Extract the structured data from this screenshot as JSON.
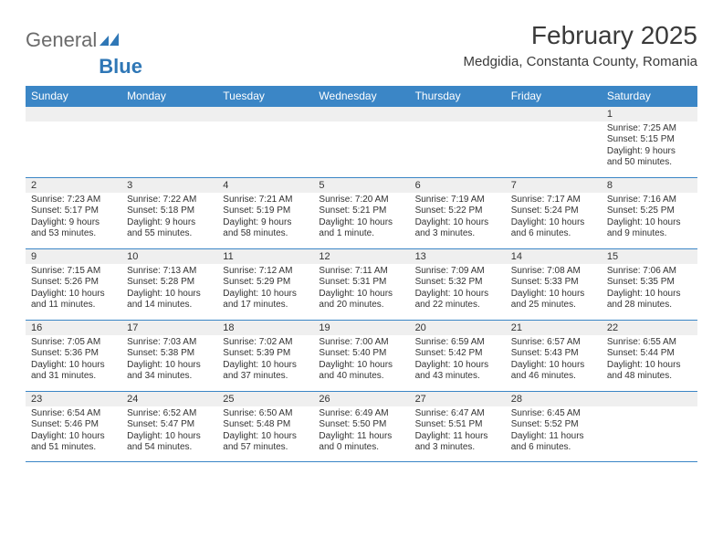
{
  "logo": {
    "text1": "General",
    "text2": "Blue"
  },
  "title": "February 2025",
  "subtitle": "Medgidia, Constanta County, Romania",
  "colors": {
    "header_bg": "#3b86c6",
    "header_text": "#ffffff",
    "daynum_bg": "#efefef",
    "rule": "#3b86c6",
    "text": "#333333",
    "logo_blue": "#2f77b6"
  },
  "day_labels": [
    "Sunday",
    "Monday",
    "Tuesday",
    "Wednesday",
    "Thursday",
    "Friday",
    "Saturday"
  ],
  "weeks": [
    [
      {
        "n": "",
        "sr": "",
        "ss": "",
        "dl": ""
      },
      {
        "n": "",
        "sr": "",
        "ss": "",
        "dl": ""
      },
      {
        "n": "",
        "sr": "",
        "ss": "",
        "dl": ""
      },
      {
        "n": "",
        "sr": "",
        "ss": "",
        "dl": ""
      },
      {
        "n": "",
        "sr": "",
        "ss": "",
        "dl": ""
      },
      {
        "n": "",
        "sr": "",
        "ss": "",
        "dl": ""
      },
      {
        "n": "1",
        "sr": "Sunrise: 7:25 AM",
        "ss": "Sunset: 5:15 PM",
        "dl": "Daylight: 9 hours and 50 minutes."
      }
    ],
    [
      {
        "n": "2",
        "sr": "Sunrise: 7:23 AM",
        "ss": "Sunset: 5:17 PM",
        "dl": "Daylight: 9 hours and 53 minutes."
      },
      {
        "n": "3",
        "sr": "Sunrise: 7:22 AM",
        "ss": "Sunset: 5:18 PM",
        "dl": "Daylight: 9 hours and 55 minutes."
      },
      {
        "n": "4",
        "sr": "Sunrise: 7:21 AM",
        "ss": "Sunset: 5:19 PM",
        "dl": "Daylight: 9 hours and 58 minutes."
      },
      {
        "n": "5",
        "sr": "Sunrise: 7:20 AM",
        "ss": "Sunset: 5:21 PM",
        "dl": "Daylight: 10 hours and 1 minute."
      },
      {
        "n": "6",
        "sr": "Sunrise: 7:19 AM",
        "ss": "Sunset: 5:22 PM",
        "dl": "Daylight: 10 hours and 3 minutes."
      },
      {
        "n": "7",
        "sr": "Sunrise: 7:17 AM",
        "ss": "Sunset: 5:24 PM",
        "dl": "Daylight: 10 hours and 6 minutes."
      },
      {
        "n": "8",
        "sr": "Sunrise: 7:16 AM",
        "ss": "Sunset: 5:25 PM",
        "dl": "Daylight: 10 hours and 9 minutes."
      }
    ],
    [
      {
        "n": "9",
        "sr": "Sunrise: 7:15 AM",
        "ss": "Sunset: 5:26 PM",
        "dl": "Daylight: 10 hours and 11 minutes."
      },
      {
        "n": "10",
        "sr": "Sunrise: 7:13 AM",
        "ss": "Sunset: 5:28 PM",
        "dl": "Daylight: 10 hours and 14 minutes."
      },
      {
        "n": "11",
        "sr": "Sunrise: 7:12 AM",
        "ss": "Sunset: 5:29 PM",
        "dl": "Daylight: 10 hours and 17 minutes."
      },
      {
        "n": "12",
        "sr": "Sunrise: 7:11 AM",
        "ss": "Sunset: 5:31 PM",
        "dl": "Daylight: 10 hours and 20 minutes."
      },
      {
        "n": "13",
        "sr": "Sunrise: 7:09 AM",
        "ss": "Sunset: 5:32 PM",
        "dl": "Daylight: 10 hours and 22 minutes."
      },
      {
        "n": "14",
        "sr": "Sunrise: 7:08 AM",
        "ss": "Sunset: 5:33 PM",
        "dl": "Daylight: 10 hours and 25 minutes."
      },
      {
        "n": "15",
        "sr": "Sunrise: 7:06 AM",
        "ss": "Sunset: 5:35 PM",
        "dl": "Daylight: 10 hours and 28 minutes."
      }
    ],
    [
      {
        "n": "16",
        "sr": "Sunrise: 7:05 AM",
        "ss": "Sunset: 5:36 PM",
        "dl": "Daylight: 10 hours and 31 minutes."
      },
      {
        "n": "17",
        "sr": "Sunrise: 7:03 AM",
        "ss": "Sunset: 5:38 PM",
        "dl": "Daylight: 10 hours and 34 minutes."
      },
      {
        "n": "18",
        "sr": "Sunrise: 7:02 AM",
        "ss": "Sunset: 5:39 PM",
        "dl": "Daylight: 10 hours and 37 minutes."
      },
      {
        "n": "19",
        "sr": "Sunrise: 7:00 AM",
        "ss": "Sunset: 5:40 PM",
        "dl": "Daylight: 10 hours and 40 minutes."
      },
      {
        "n": "20",
        "sr": "Sunrise: 6:59 AM",
        "ss": "Sunset: 5:42 PM",
        "dl": "Daylight: 10 hours and 43 minutes."
      },
      {
        "n": "21",
        "sr": "Sunrise: 6:57 AM",
        "ss": "Sunset: 5:43 PM",
        "dl": "Daylight: 10 hours and 46 minutes."
      },
      {
        "n": "22",
        "sr": "Sunrise: 6:55 AM",
        "ss": "Sunset: 5:44 PM",
        "dl": "Daylight: 10 hours and 48 minutes."
      }
    ],
    [
      {
        "n": "23",
        "sr": "Sunrise: 6:54 AM",
        "ss": "Sunset: 5:46 PM",
        "dl": "Daylight: 10 hours and 51 minutes."
      },
      {
        "n": "24",
        "sr": "Sunrise: 6:52 AM",
        "ss": "Sunset: 5:47 PM",
        "dl": "Daylight: 10 hours and 54 minutes."
      },
      {
        "n": "25",
        "sr": "Sunrise: 6:50 AM",
        "ss": "Sunset: 5:48 PM",
        "dl": "Daylight: 10 hours and 57 minutes."
      },
      {
        "n": "26",
        "sr": "Sunrise: 6:49 AM",
        "ss": "Sunset: 5:50 PM",
        "dl": "Daylight: 11 hours and 0 minutes."
      },
      {
        "n": "27",
        "sr": "Sunrise: 6:47 AM",
        "ss": "Sunset: 5:51 PM",
        "dl": "Daylight: 11 hours and 3 minutes."
      },
      {
        "n": "28",
        "sr": "Sunrise: 6:45 AM",
        "ss": "Sunset: 5:52 PM",
        "dl": "Daylight: 11 hours and 6 minutes."
      },
      {
        "n": "",
        "sr": "",
        "ss": "",
        "dl": ""
      }
    ]
  ]
}
